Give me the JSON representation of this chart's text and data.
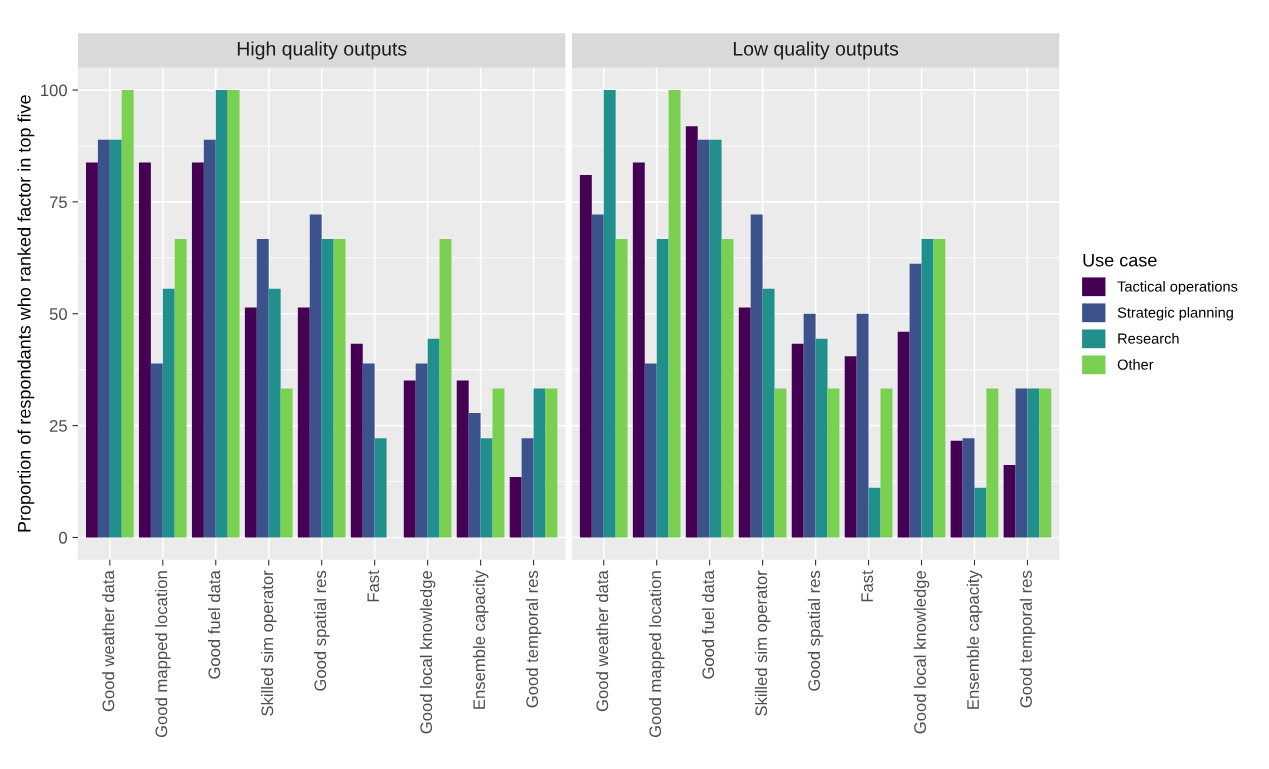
{
  "chart_data": [
    {
      "type": "bar",
      "title": "High quality outputs",
      "ylabel": "Proportion of respondants who ranked factor in top five",
      "categories": [
        "Good weather data",
        "Good mapped location",
        "Good fuel data",
        "Skilled sim operator",
        "Good spatial res",
        "Fast",
        "Good local knowledge",
        "Ensemble capacity",
        "Good temporal res"
      ],
      "series": [
        {
          "color": "#440154",
          "values": [
            83.8,
            83.8,
            83.8,
            51.4,
            51.4,
            43.3,
            35.1,
            35.1,
            13.5
          ]
        },
        {
          "color": "#3b528b",
          "values": [
            88.9,
            38.9,
            88.9,
            66.7,
            72.2,
            38.9,
            38.9,
            27.8,
            22.2
          ]
        },
        {
          "color": "#21908c",
          "values": [
            88.9,
            55.6,
            100,
            55.6,
            66.7,
            22.2,
            44.4,
            22.2,
            33.3
          ]
        },
        {
          "color": "#7ad151",
          "values": [
            100,
            66.7,
            100,
            33.3,
            66.7,
            null,
            66.7,
            33.3,
            33.3
          ]
        }
      ],
      "ylim": [
        -5,
        105
      ],
      "yticks": [
        0,
        25,
        50,
        75,
        100
      ],
      "grid": true
    },
    {
      "type": "bar",
      "title": "Low quality outputs",
      "legend_title": "Use case",
      "categories": [
        "Good weather data",
        "Good mapped location",
        "Good fuel data",
        "Skilled sim operator",
        "Good spatial res",
        "Fast",
        "Good local knowledge",
        "Ensemble capacity",
        "Good temporal res"
      ],
      "series": [
        {
          "name": "Tactical operations",
          "color": "#440154",
          "values": [
            81.0,
            83.8,
            91.9,
            51.4,
            43.3,
            40.5,
            46.0,
            21.6,
            16.2
          ]
        },
        {
          "name": "Strategic planning",
          "color": "#3b528b",
          "values": [
            72.2,
            38.9,
            88.9,
            72.2,
            50,
            50,
            61.2,
            22.2,
            33.3
          ]
        },
        {
          "name": "Research",
          "color": "#21908c",
          "values": [
            100,
            66.7,
            88.9,
            55.6,
            44.4,
            11.1,
            66.7,
            11.1,
            33.3
          ]
        },
        {
          "name": "Other",
          "color": "#7ad151",
          "values": [
            66.7,
            100,
            66.7,
            33.3,
            33.3,
            33.3,
            66.7,
            33.3,
            33.3
          ]
        }
      ],
      "ylim": [
        -5,
        105
      ],
      "yticks": [
        0,
        25,
        50,
        75,
        100
      ],
      "grid": true,
      "legend": "right",
      "tick_labels": "x"
    }
  ]
}
